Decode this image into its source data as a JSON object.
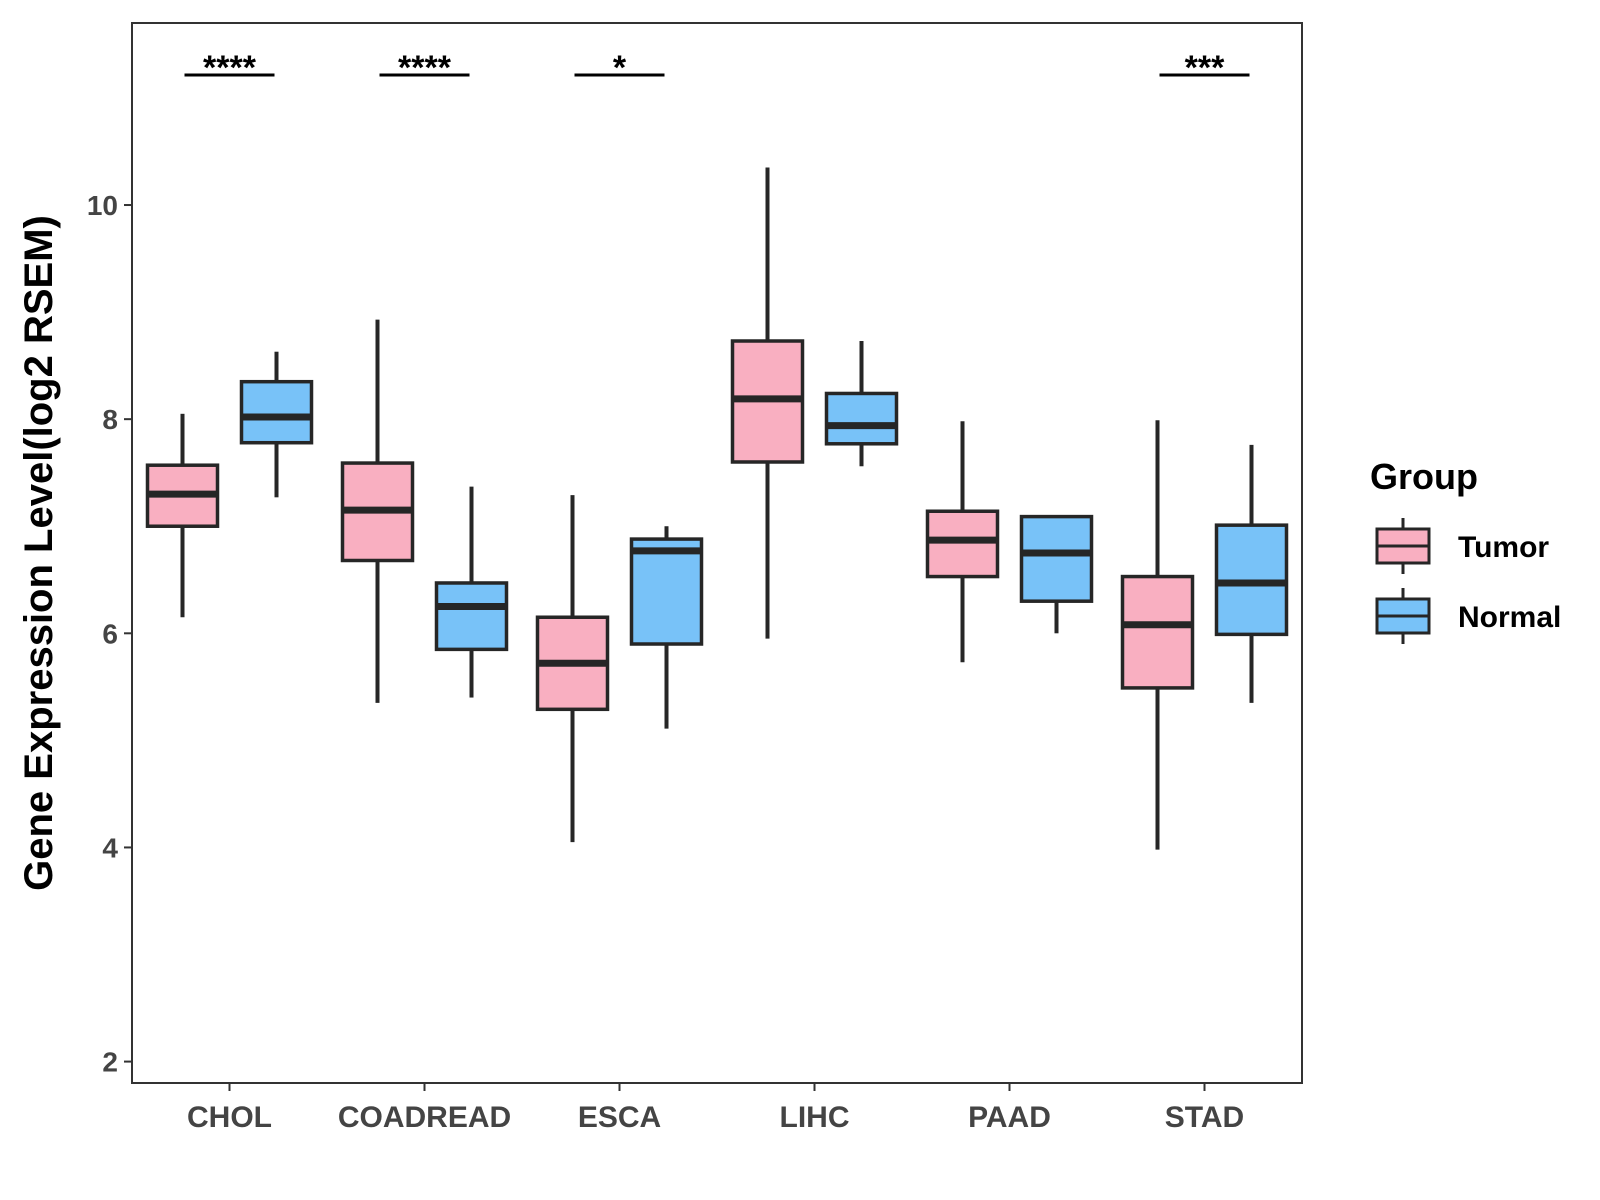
{
  "chart_data": {
    "type": "boxplot",
    "ylabel": "Gene Expression Level(log2 RSEM)",
    "xlabel": "",
    "ylim": [
      1.8,
      11.7
    ],
    "yticks": [
      2,
      4,
      6,
      8,
      10
    ],
    "grid": false,
    "legend": {
      "title": "Group",
      "position": "right",
      "entries": [
        "Tumor",
        "Normal"
      ]
    },
    "colors": {
      "Tumor": "#F9AFC1",
      "Normal": "#78C2F8",
      "stroke": "#262626"
    },
    "categories": [
      "CHOL",
      "COADREAD",
      "ESCA",
      "LIHC",
      "PAAD",
      "STAD"
    ],
    "series": [
      {
        "name": "Tumor",
        "boxes": [
          {
            "min": 6.15,
            "q1": 7.0,
            "median": 7.3,
            "q3": 7.57,
            "max": 8.05
          },
          {
            "min": 5.35,
            "q1": 6.68,
            "median": 7.15,
            "q3": 7.59,
            "max": 8.93
          },
          {
            "min": 4.05,
            "q1": 5.29,
            "median": 5.72,
            "q3": 6.15,
            "max": 7.29
          },
          {
            "min": 5.95,
            "q1": 7.6,
            "median": 8.19,
            "q3": 8.73,
            "max": 10.35
          },
          {
            "min": 5.73,
            "q1": 6.53,
            "median": 6.87,
            "q3": 7.14,
            "max": 7.98
          },
          {
            "min": 3.98,
            "q1": 5.49,
            "median": 6.08,
            "q3": 6.53,
            "max": 7.99
          }
        ]
      },
      {
        "name": "Normal",
        "boxes": [
          {
            "min": 7.27,
            "q1": 7.78,
            "median": 8.02,
            "q3": 8.35,
            "max": 8.63
          },
          {
            "min": 5.4,
            "q1": 5.85,
            "median": 6.25,
            "q3": 6.47,
            "max": 7.37
          },
          {
            "min": 5.11,
            "q1": 5.9,
            "median": 6.77,
            "q3": 6.88,
            "max": 7.0
          },
          {
            "min": 7.56,
            "q1": 7.77,
            "median": 7.94,
            "q3": 8.24,
            "max": 8.73
          },
          {
            "min": 6.0,
            "q1": 6.3,
            "median": 6.75,
            "q3": 7.09,
            "max": 7.09
          },
          {
            "min": 5.35,
            "q1": 5.99,
            "median": 6.47,
            "q3": 7.01,
            "max": 7.76
          }
        ]
      }
    ],
    "significance": [
      {
        "category": "CHOL",
        "label": "****"
      },
      {
        "category": "COADREAD",
        "label": "****"
      },
      {
        "category": "ESCA",
        "label": "*"
      },
      {
        "category": "STAD",
        "label": "***"
      }
    ]
  }
}
